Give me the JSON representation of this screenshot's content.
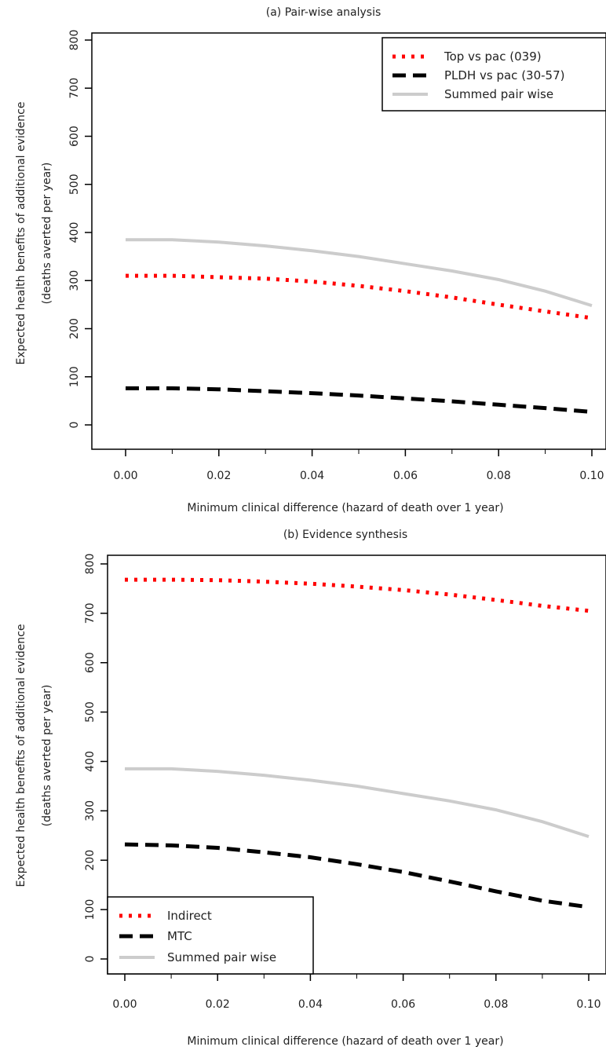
{
  "chart_data": [
    {
      "type": "line",
      "title": "(a) Pair-wise analysis",
      "xlabel": "Minimum clinical difference (hazard of death over 1 year)",
      "ylabel": [
        "Expected health benefits of additional evidence",
        "(deaths averted per year)"
      ],
      "xlim": [
        0,
        0.1
      ],
      "ylim": [
        0,
        800
      ],
      "x_ticks": [
        0,
        0.02,
        0.04,
        0.06,
        0.08,
        0.1
      ],
      "x_tick_labels": [
        "0.00",
        "0.02",
        "0.04",
        "0.06",
        "0.08",
        "0.10"
      ],
      "y_ticks": [
        0,
        100,
        200,
        300,
        400,
        500,
        600,
        700,
        800
      ],
      "y_tick_labels": [
        "0",
        "100",
        "200",
        "300",
        "400",
        "500",
        "600",
        "700",
        "800"
      ],
      "grid": false,
      "legend_position": "top-right",
      "x": [
        0,
        0.01,
        0.02,
        0.03,
        0.04,
        0.05,
        0.06,
        0.07,
        0.08,
        0.09,
        0.1
      ],
      "series": [
        {
          "name": "Top vs pac (039)",
          "color": "#ff0000",
          "style": "dotted",
          "values": [
            310,
            310,
            307,
            304,
            298,
            289,
            278,
            265,
            250,
            236,
            222
          ]
        },
        {
          "name": "PLDH vs pac (30-57)",
          "color": "#000000",
          "style": "dashed",
          "values": [
            76,
            76,
            74,
            70,
            66,
            61,
            55,
            49,
            42,
            35,
            27
          ]
        },
        {
          "name": "Summed pair wise",
          "color": "#cccccc",
          "style": "solid",
          "values": [
            385,
            385,
            380,
            372,
            362,
            350,
            335,
            320,
            302,
            278,
            248
          ]
        }
      ]
    },
    {
      "type": "line",
      "title": "(b) Evidence synthesis",
      "xlabel": "Minimum clinical difference (hazard of death over 1 year)",
      "ylabel": [
        "Expected health benefits of additional evidence",
        "(deaths averted per year)"
      ],
      "xlim": [
        0,
        0.1
      ],
      "ylim": [
        0,
        800
      ],
      "x_ticks": [
        0,
        0.02,
        0.04,
        0.06,
        0.08,
        0.1
      ],
      "x_tick_labels": [
        "0.00",
        "0.02",
        "0.04",
        "0.06",
        "0.08",
        "0.10"
      ],
      "y_ticks": [
        0,
        100,
        200,
        300,
        400,
        500,
        600,
        700,
        800
      ],
      "y_tick_labels": [
        "0",
        "100",
        "200",
        "300",
        "400",
        "500",
        "600",
        "700",
        "800"
      ],
      "grid": false,
      "legend_position": "bottom-left",
      "x": [
        0,
        0.01,
        0.02,
        0.03,
        0.04,
        0.05,
        0.06,
        0.07,
        0.08,
        0.09,
        0.1
      ],
      "series": [
        {
          "name": "Indirect",
          "color": "#ff0000",
          "style": "dotted",
          "values": [
            768,
            768,
            767,
            764,
            760,
            754,
            747,
            738,
            727,
            715,
            705
          ]
        },
        {
          "name": "MTC",
          "color": "#000000",
          "style": "dashed",
          "values": [
            232,
            230,
            225,
            216,
            206,
            192,
            176,
            157,
            137,
            118,
            105
          ]
        },
        {
          "name": "Summed pair wise",
          "color": "#cccccc",
          "style": "solid",
          "values": [
            385,
            385,
            380,
            372,
            362,
            350,
            335,
            320,
            302,
            278,
            248
          ]
        }
      ]
    }
  ]
}
